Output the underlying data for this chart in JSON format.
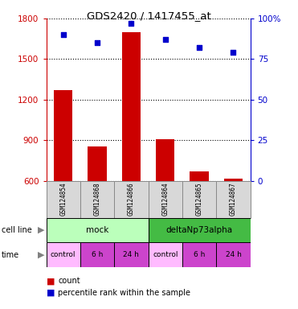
{
  "title": "GDS2420 / 1417455_at",
  "samples": [
    "GSM124854",
    "GSM124868",
    "GSM124866",
    "GSM124864",
    "GSM124865",
    "GSM124867"
  ],
  "counts": [
    1270,
    855,
    1700,
    910,
    670,
    615
  ],
  "percentile_ranks": [
    90,
    85,
    97,
    87,
    82,
    79
  ],
  "ylim_left": [
    600,
    1800
  ],
  "ylim_right": [
    0,
    100
  ],
  "yticks_left": [
    600,
    900,
    1200,
    1500,
    1800
  ],
  "yticks_right": [
    0,
    25,
    50,
    75,
    100
  ],
  "bar_color": "#cc0000",
  "dot_color": "#0000cc",
  "bar_width": 0.55,
  "cell_line_labels": [
    "mock",
    "deltaNp73alpha"
  ],
  "cell_line_spans": [
    [
      0,
      3
    ],
    [
      3,
      6
    ]
  ],
  "cell_line_light_color": "#bbffbb",
  "cell_line_dark_color": "#44bb44",
  "time_labels": [
    "control",
    "6 h",
    "24 h",
    "control",
    "6 h",
    "24 h"
  ],
  "time_light_color": "#ffbbff",
  "time_dark_color": "#cc44cc",
  "bg_color": "#d8d8d8",
  "left_tick_color": "#cc0000",
  "right_tick_color": "#0000cc",
  "legend_red_label": "count",
  "legend_blue_label": "percentile rank within the sample"
}
